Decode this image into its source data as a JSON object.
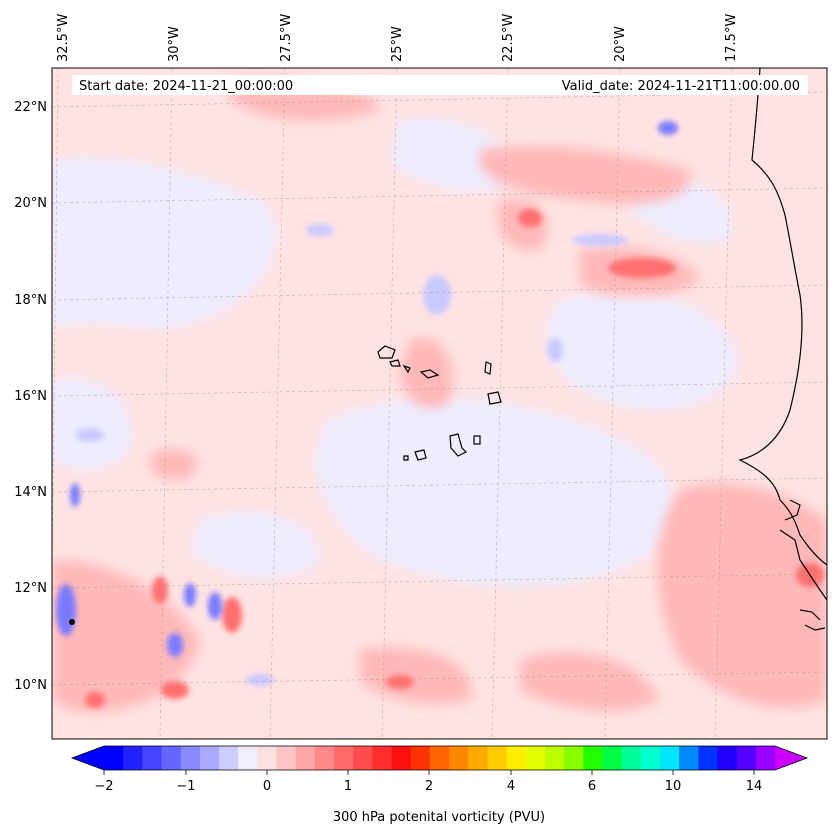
{
  "header": {
    "start_date": "Start date: 2024-11-21_00:00:00",
    "valid_date": "Valid_date: 2024-11-21T11:00:00.00"
  },
  "map": {
    "lon_labels": [
      "32.5°W",
      "30°W",
      "27.5°W",
      "25°W",
      "22.5°W",
      "20°W",
      "17.5°W"
    ],
    "lat_labels": [
      "22°N",
      "20°N",
      "18°N",
      "16°N",
      "14°N",
      "12°N",
      "10°N"
    ],
    "colors": {
      "light_red": "#ffe3e3",
      "red": "#ffb8b8",
      "strong_red": "#ff6f6f",
      "light_blue": "#ededff",
      "blue": "#c9c9ff",
      "strong_blue": "#7a7aff",
      "coast": "#000000"
    }
  },
  "colorbar": {
    "title": "300 hPa potenital vorticity (PVU)",
    "tick_labels": [
      "−2",
      "−1",
      "0",
      "1",
      "2",
      "4",
      "6",
      "10",
      "14"
    ],
    "colors": [
      "#0000ff",
      "#2222ff",
      "#4444ff",
      "#6666ff",
      "#8888ff",
      "#aaaaff",
      "#ccccff",
      "#eeeeff",
      "#ffe0e0",
      "#ffc4c4",
      "#ffa6a6",
      "#ff8888",
      "#ff6a6a",
      "#ff4c4c",
      "#ff2e2e",
      "#ff1010",
      "#ff3300",
      "#ff6600",
      "#ff8800",
      "#ffaa00",
      "#ffcc00",
      "#ffee00",
      "#e6ff00",
      "#bbff00",
      "#88ff00",
      "#22ff00",
      "#00ff44",
      "#00ff99",
      "#00ffcc",
      "#00e5ff",
      "#0088ff",
      "#0033ff",
      "#2200ff",
      "#5500ff",
      "#9900ff"
    ],
    "extend_left_color": "#0000ff",
    "extend_right_color": "#cc00ff"
  }
}
